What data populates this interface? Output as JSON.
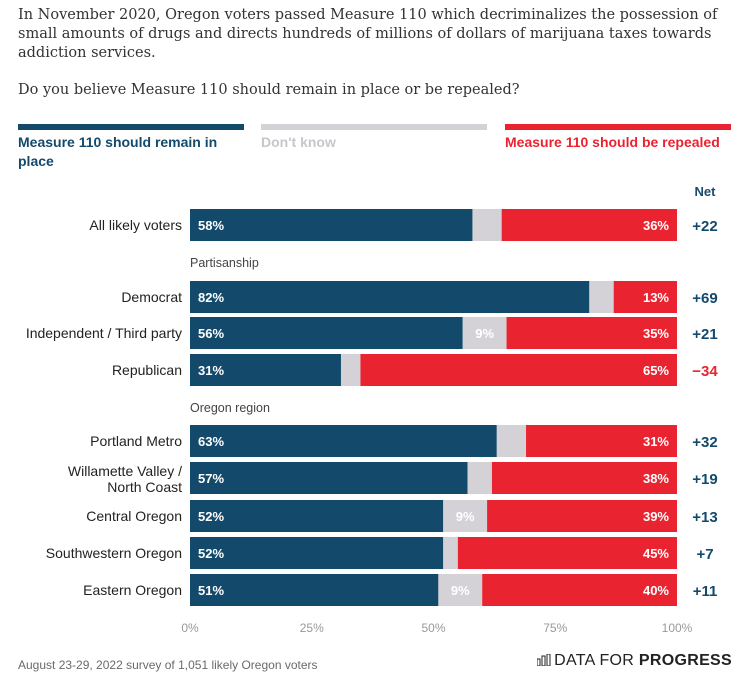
{
  "intro": "In November 2020, Oregon voters passed Measure 110 which decriminalizes the possession of small amounts of drugs and directs hundreds of millions of dollars of marijuana taxes towards addiction services.",
  "question": "Do you believe Measure 110 should remain in place or be repealed?",
  "legend": [
    {
      "label": "Measure 110 should remain in place",
      "color": "#134a6c"
    },
    {
      "label": "Don't know",
      "color": "#d4d2d6"
    },
    {
      "label": "Measure 110 should be repealed",
      "color": "#ea2330"
    }
  ],
  "net_header": "Net",
  "footer": "August 23-29, 2022 survey of 1,051 likely Oregon voters",
  "brand": {
    "prefix": "DATA FOR ",
    "bold": "PROGRESS"
  },
  "chart_data": {
    "type": "bar",
    "orientation": "horizontal",
    "stacked": true,
    "xlim": [
      0,
      100
    ],
    "xticks": [
      "0%",
      "25%",
      "50%",
      "75%",
      "100%"
    ],
    "groups": [
      {
        "heading": "",
        "rows": [
          {
            "label": "All likely voters",
            "remain": 58,
            "dont_know": 6,
            "dont_know_label": "",
            "repeal": 36,
            "net": "+22"
          }
        ]
      },
      {
        "heading": "Partisanship",
        "rows": [
          {
            "label": "Democrat",
            "remain": 82,
            "dont_know": 5,
            "dont_know_label": "",
            "repeal": 13,
            "net": "+69"
          },
          {
            "label": "Independent / Third party",
            "remain": 56,
            "dont_know": 9,
            "dont_know_label": "9%",
            "repeal": 35,
            "net": "+21"
          },
          {
            "label": "Republican",
            "remain": 31,
            "dont_know": 4,
            "dont_know_label": "",
            "repeal": 65,
            "net": "−34"
          }
        ]
      },
      {
        "heading": "Oregon region",
        "rows": [
          {
            "label": "Portland Metro",
            "remain": 63,
            "dont_know": 6,
            "dont_know_label": "",
            "repeal": 31,
            "net": "+32"
          },
          {
            "label": "Willamette Valley / North Coast",
            "remain": 57,
            "dont_know": 5,
            "dont_know_label": "",
            "repeal": 38,
            "net": "+19"
          },
          {
            "label": "Central Oregon",
            "remain": 52,
            "dont_know": 9,
            "dont_know_label": "9%",
            "repeal": 39,
            "net": "+13"
          },
          {
            "label": "Southwestern Oregon",
            "remain": 52,
            "dont_know": 3,
            "dont_know_label": "",
            "repeal": 45,
            "net": "+7"
          },
          {
            "label": "Eastern Oregon",
            "remain": 51,
            "dont_know": 9,
            "dont_know_label": "9%",
            "repeal": 40,
            "net": "+11"
          }
        ]
      }
    ]
  }
}
